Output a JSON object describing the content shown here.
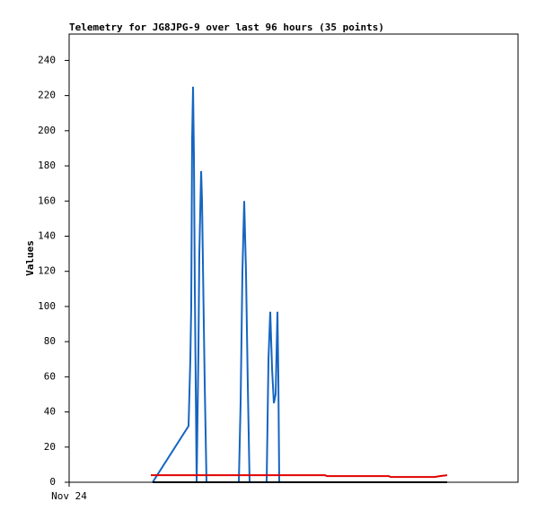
{
  "chart_data": {
    "type": "line",
    "title": "Telemetry for JG8JPG-9 over last 96 hours (35 points)",
    "y_label": "Values",
    "xlim": [
      0,
      96
    ],
    "xticks": [
      {
        "value": 0,
        "label": "Nov 24"
      }
    ],
    "ylim": [
      0,
      255
    ],
    "yticks": [
      0,
      20,
      40,
      60,
      80,
      100,
      120,
      140,
      160,
      180,
      200,
      220,
      240
    ],
    "grid": false,
    "series": [
      {
        "color": "#1565c0",
        "x": [
          17.86,
          25.54,
          25.92,
          26.11,
          26.3,
          26.5,
          26.69,
          26.88,
          27.27,
          27.65,
          27.84,
          28.23,
          28.42,
          28.8,
          29.0,
          29.38,
          36.29,
          36.67,
          37.06,
          37.44,
          37.82,
          38.21,
          38.59,
          42.24,
          42.63,
          43.01,
          43.39,
          43.78,
          44.16,
          44.55,
          44.74,
          44.93
        ],
        "values": [
          0,
          32,
          70,
          100,
          195,
          225,
          185,
          110,
          0,
          75,
          130,
          177,
          160,
          90,
          55,
          0,
          0,
          45,
          120,
          160,
          120,
          55,
          0,
          0,
          70,
          97,
          65,
          45,
          50,
          97,
          60,
          0
        ]
      },
      {
        "color": "#e00000",
        "x": [
          17.47,
          54.72,
          55.11,
          68.36,
          68.74,
          78.15,
          79.3,
          80.84
        ],
        "values": [
          4,
          4,
          3.5,
          3.5,
          3,
          3,
          3.5,
          4
        ]
      },
      {
        "color": "#000000",
        "x": [
          17.86,
          80.84
        ],
        "values": [
          0,
          0
        ]
      }
    ]
  }
}
